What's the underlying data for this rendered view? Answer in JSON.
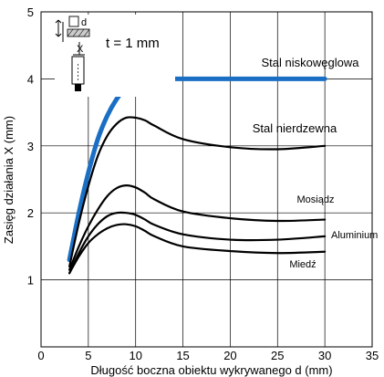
{
  "chart_data": {
    "type": "line",
    "xlabel": "Długość boczna obiektu wykrywanego d (mm)",
    "ylabel": "Zasięg działania X (mm)",
    "xlim": [
      0,
      35
    ],
    "ylim": [
      0,
      5
    ],
    "x_ticks": [
      "0",
      "5",
      "10",
      "15",
      "20",
      "25",
      "30",
      "35"
    ],
    "y_ticks": [
      "1",
      "2",
      "3",
      "4",
      "5"
    ],
    "grid": true,
    "inset": {
      "equation": "t = 1 mm",
      "d_label": "d",
      "x_label": "X"
    },
    "series": [
      {
        "name": "Stal niskowęglowa",
        "color": "#1a6fc4",
        "x": [
          3,
          4,
          5,
          6,
          7,
          8,
          9,
          10,
          11,
          12,
          15,
          20,
          25,
          30
        ],
        "y": [
          1.3,
          2.0,
          2.6,
          3.1,
          3.45,
          3.7,
          3.87,
          3.96,
          4.0,
          4.0,
          4.0,
          4.0,
          4.0,
          4.0
        ]
      },
      {
        "name": "Stal nierdzewna",
        "color": "#000000",
        "x": [
          3,
          4,
          5,
          6,
          7,
          8,
          9,
          10,
          11,
          12,
          15,
          20,
          25,
          30
        ],
        "y": [
          1.2,
          1.85,
          2.4,
          2.85,
          3.15,
          3.33,
          3.42,
          3.42,
          3.38,
          3.3,
          3.1,
          2.98,
          2.95,
          3.0
        ]
      },
      {
        "name": "Mosiądz",
        "color": "#000000",
        "x": [
          3,
          4,
          5,
          6,
          7,
          8,
          9,
          10,
          11,
          12,
          15,
          20,
          25,
          30
        ],
        "y": [
          1.15,
          1.5,
          1.8,
          2.05,
          2.25,
          2.37,
          2.41,
          2.38,
          2.3,
          2.2,
          2.02,
          1.92,
          1.88,
          1.9
        ]
      },
      {
        "name": "Aluminium",
        "color": "#000000",
        "x": [
          3,
          4,
          5,
          6,
          7,
          8,
          9,
          10,
          11,
          12,
          15,
          20,
          25,
          30
        ],
        "y": [
          1.1,
          1.4,
          1.65,
          1.83,
          1.95,
          2.0,
          2.0,
          1.97,
          1.9,
          1.82,
          1.68,
          1.6,
          1.6,
          1.65
        ]
      },
      {
        "name": "Miedź",
        "color": "#000000",
        "x": [
          3,
          4,
          5,
          6,
          7,
          8,
          9,
          10,
          11,
          12,
          15,
          20,
          25,
          30
        ],
        "y": [
          1.1,
          1.35,
          1.55,
          1.68,
          1.77,
          1.82,
          1.83,
          1.8,
          1.73,
          1.65,
          1.5,
          1.43,
          1.4,
          1.42
        ]
      }
    ]
  }
}
